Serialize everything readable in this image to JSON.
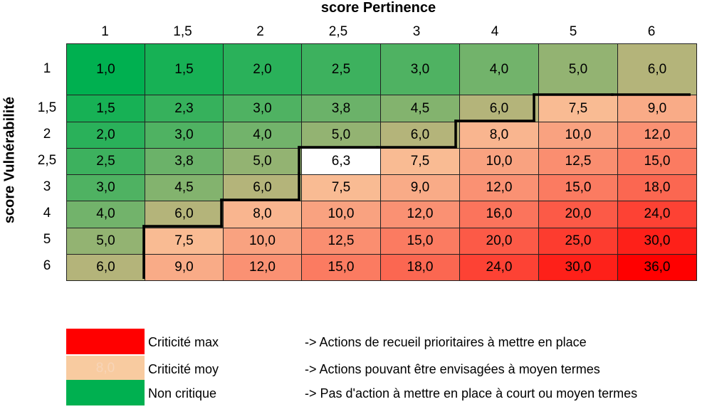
{
  "chart_data": {
    "type": "heatmap",
    "title": "score Pertinence",
    "xlabel": "score Pertinence",
    "ylabel": "score Vulnérabilité",
    "x": [
      "1",
      "1,5",
      "2",
      "2,5",
      "3",
      "4",
      "5",
      "6"
    ],
    "y": [
      "1",
      "1,5",
      "2",
      "2,5",
      "3",
      "4",
      "5",
      "6"
    ],
    "values": [
      [
        "1,0",
        "1,5",
        "2,0",
        "2,5",
        "3,0",
        "4,0",
        "5,0",
        "6,0"
      ],
      [
        "1,5",
        "2,3",
        "3,0",
        "3,8",
        "4,5",
        "6,0",
        "7,5",
        "9,0"
      ],
      [
        "2,0",
        "3,0",
        "4,0",
        "5,0",
        "6,0",
        "8,0",
        "10,0",
        "12,0"
      ],
      [
        "2,5",
        "3,8",
        "5,0",
        "6,3",
        "7,5",
        "10,0",
        "12,5",
        "15,0"
      ],
      [
        "3,0",
        "4,5",
        "6,0",
        "7,5",
        "9,0",
        "12,0",
        "15,0",
        "18,0"
      ],
      [
        "4,0",
        "6,0",
        "8,0",
        "10,0",
        "12,0",
        "16,0",
        "20,0",
        "24,0"
      ],
      [
        "5,0",
        "7,5",
        "10,0",
        "12,5",
        "15,0",
        "20,0",
        "25,0",
        "30,0"
      ],
      [
        "6,0",
        "9,0",
        "12,0",
        "15,0",
        "18,0",
        "24,0",
        "30,0",
        "36,0"
      ]
    ],
    "colors": {
      "non_critique": "#00b050",
      "mid": "#b4b47a",
      "criticite_moy": "#f8cba0",
      "criticite_max": "#ff0000"
    }
  },
  "legend": [
    {
      "label": "Criticité max",
      "description": "-> Actions de recueil prioritaires à mettre en place",
      "color": "#ff0000",
      "swatch_text": ""
    },
    {
      "label": "Criticité moy",
      "description": "-> Actions pouvant être envisagées à moyen termes",
      "color": "#f8cba0",
      "swatch_text": "8,0"
    },
    {
      "label": "Non critique",
      "description": "-> Pas d'action à mettre en place à court ou moyen termes",
      "color": "#00b050",
      "swatch_text": ""
    }
  ]
}
